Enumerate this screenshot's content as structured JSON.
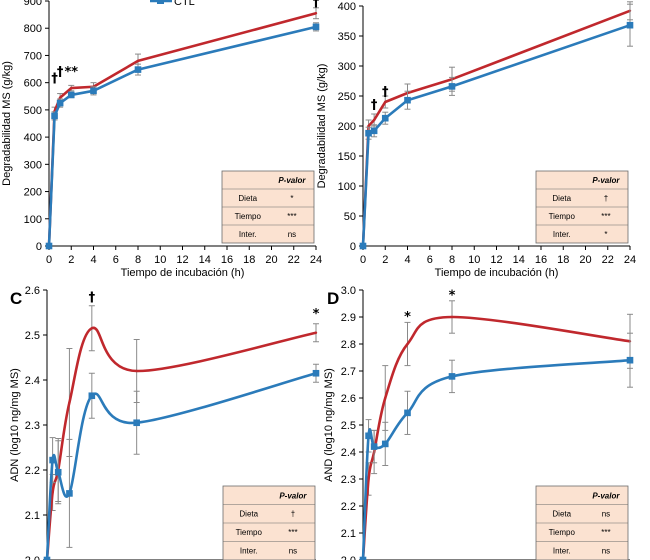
{
  "colors": {
    "dieta": "#c0282d",
    "ctl": "#2b7bba",
    "table_fill": "#fbe2d1",
    "table_stroke": "#6b6b6b",
    "axis": "#000000",
    "err": "#8a8a8a"
  },
  "legend": {
    "ctl_label": "CTL"
  },
  "chart_data": [
    {
      "id": "A",
      "panel_label": "",
      "type": "line",
      "xlabel": "Tiempo de incubación (h)",
      "ylabel": "Degradabilidad MS (g/kg)",
      "xlim": [
        0,
        24
      ],
      "ylim": [
        0,
        900
      ],
      "xticks": [
        0,
        2,
        4,
        6,
        8,
        10,
        12,
        14,
        16,
        18,
        20,
        22,
        24
      ],
      "yticks": [
        0,
        100,
        200,
        300,
        400,
        500,
        600,
        700,
        800,
        900
      ],
      "tick_decimals": 0,
      "curve": "linear",
      "x": [
        0,
        0.5,
        1,
        2,
        4,
        8,
        24
      ],
      "series": [
        {
          "name": "Dieta",
          "color_key": "dieta",
          "marker": "none",
          "values": [
            0,
            495,
            545,
            580,
            585,
            680,
            855
          ],
          "err": [
            0,
            15,
            15,
            10,
            15,
            25,
            20
          ]
        },
        {
          "name": "CTL",
          "color_key": "ctl",
          "marker": "square",
          "values": [
            0,
            478,
            525,
            555,
            570,
            648,
            805
          ],
          "err": [
            0,
            15,
            15,
            10,
            15,
            20,
            15
          ]
        }
      ],
      "annotations": [
        {
          "text": "†",
          "x": 0.5,
          "y": 600
        },
        {
          "text": "†",
          "x": 1.0,
          "y": 625
        },
        {
          "text": "**",
          "x": 2.0,
          "y": 625
        },
        {
          "text": "†",
          "x": 24,
          "y": 880
        }
      ],
      "ptable": {
        "header": "P-valor",
        "rows": [
          {
            "label": "Dieta",
            "value": "*"
          },
          {
            "label": "Tiempo",
            "value": "***"
          },
          {
            "label": "Inter.",
            "value": "ns"
          }
        ]
      }
    },
    {
      "id": "B",
      "panel_label": "",
      "type": "line",
      "xlabel": "Tiempo de incubación (h)",
      "ylabel": "Degradabilidad MS (g/kg)",
      "xlim": [
        0,
        24
      ],
      "ylim": [
        0,
        400
      ],
      "xticks": [
        0,
        2,
        4,
        6,
        8,
        10,
        12,
        14,
        16,
        18,
        20,
        22,
        24
      ],
      "yticks": [
        0,
        50,
        100,
        150,
        200,
        250,
        300,
        350,
        400
      ],
      "tick_decimals": 0,
      "curve": "linear",
      "x": [
        0,
        0.5,
        1,
        2,
        4,
        8,
        24
      ],
      "series": [
        {
          "name": "Dieta",
          "color_key": "dieta",
          "marker": "none",
          "values": [
            0,
            200,
            210,
            240,
            255,
            278,
            392
          ],
          "err": [
            0,
            10,
            10,
            10,
            15,
            20,
            15
          ]
        },
        {
          "name": "CTL",
          "color_key": "ctl",
          "marker": "square",
          "values": [
            0,
            188,
            192,
            213,
            243,
            266,
            368
          ],
          "err": [
            0,
            10,
            10,
            10,
            15,
            15,
            35
          ]
        }
      ],
      "annotations": [
        {
          "text": "†",
          "x": 1.0,
          "y": 228
        },
        {
          "text": "†",
          "x": 2.0,
          "y": 250
        }
      ],
      "ptable": {
        "header": "P-valor",
        "rows": [
          {
            "label": "Dieta",
            "value": "†"
          },
          {
            "label": "Tiempo",
            "value": "***"
          },
          {
            "label": "Inter.",
            "value": "*"
          }
        ]
      }
    },
    {
      "id": "C",
      "panel_label": "C",
      "type": "line",
      "xlabel": "",
      "ylabel": "ADN  (log10 ng/mg MS)",
      "xlim": [
        0,
        24
      ],
      "ylim": [
        2.0,
        2.6
      ],
      "xticks": [],
      "yticks": [
        2.0,
        2.1,
        2.2,
        2.3,
        2.4,
        2.5,
        2.6
      ],
      "tick_decimals": 1,
      "curve": "smooth",
      "x": [
        0,
        0.5,
        1,
        2,
        4,
        8,
        24
      ],
      "series": [
        {
          "name": "Dieta",
          "color_key": "dieta",
          "marker": "none",
          "values": [
            2.0,
            2.15,
            2.2,
            2.35,
            2.515,
            2.42,
            2.505
          ],
          "err": [
            0,
            0.04,
            0.07,
            0.12,
            0.05,
            0.07,
            0.02
          ]
        },
        {
          "name": "CTL",
          "color_key": "ctl",
          "marker": "square",
          "values": [
            2.0,
            2.222,
            2.195,
            2.148,
            2.365,
            2.305,
            2.415
          ],
          "err": [
            0,
            0.05,
            0.07,
            0.12,
            0.05,
            0.07,
            0.02
          ]
        }
      ],
      "annotations": [
        {
          "text": "†",
          "x": 4.0,
          "y": 2.575
        },
        {
          "text": "*",
          "x": 24,
          "y": 2.538
        }
      ],
      "ptable": {
        "header": "P-valor",
        "rows": [
          {
            "label": "Dieta",
            "value": "†"
          },
          {
            "label": "Tiempo",
            "value": "***"
          },
          {
            "label": "Inter.",
            "value": "ns"
          }
        ]
      }
    },
    {
      "id": "D",
      "panel_label": "D",
      "type": "line",
      "xlabel": "",
      "ylabel": "AND (log10 ng/mg MS)",
      "xlim": [
        0,
        24
      ],
      "ylim": [
        2.0,
        3.0
      ],
      "xticks": [],
      "yticks": [
        2.0,
        2.1,
        2.2,
        2.3,
        2.4,
        2.5,
        2.6,
        2.7,
        2.8,
        2.9,
        3.0
      ],
      "tick_decimals": 1,
      "curve": "smooth",
      "x": [
        0,
        0.5,
        1,
        2,
        4,
        8,
        24
      ],
      "series": [
        {
          "name": "Dieta",
          "color_key": "dieta",
          "marker": "none",
          "values": [
            2.0,
            2.3,
            2.4,
            2.6,
            2.8,
            2.9,
            2.81
          ],
          "err": [
            0,
            0.06,
            0.08,
            0.12,
            0.08,
            0.06,
            0.1
          ]
        },
        {
          "name": "CTL",
          "color_key": "ctl",
          "marker": "square",
          "values": [
            2.0,
            2.46,
            2.42,
            2.43,
            2.545,
            2.68,
            2.74
          ],
          "err": [
            0,
            0.06,
            0.06,
            0.08,
            0.08,
            0.06,
            0.1
          ]
        }
      ],
      "annotations": [
        {
          "text": "*",
          "x": 4.0,
          "y": 2.885
        },
        {
          "text": "*",
          "x": 8.0,
          "y": 2.965
        }
      ],
      "ptable": {
        "header": "P-valor",
        "rows": [
          {
            "label": "Dieta",
            "value": "ns"
          },
          {
            "label": "Tiempo",
            "value": "***"
          },
          {
            "label": "Inter.",
            "value": "ns"
          }
        ]
      }
    }
  ]
}
